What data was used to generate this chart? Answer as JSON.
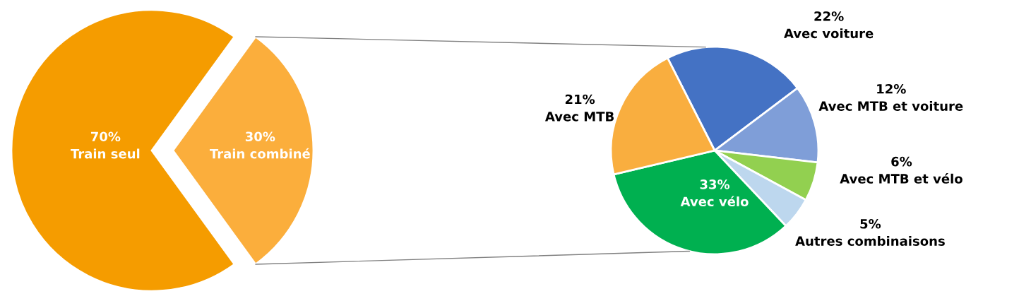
{
  "chart_data": [
    {
      "type": "pie",
      "categories": [
        "Train seul",
        "Train combiné"
      ],
      "values": [
        70,
        30
      ],
      "colors": [
        "#f59c00",
        "#fbae3c"
      ],
      "value_labels": [
        "70%",
        "30%"
      ]
    },
    {
      "type": "pie",
      "categories": [
        "Avec voiture",
        "Avec MTB et voiture",
        "Avec MTB et vélo",
        "Autres combinaisons",
        "Avec vélo",
        "Avec MTB"
      ],
      "values": [
        22,
        12,
        6,
        5,
        33,
        21
      ],
      "colors": [
        "#4472c4",
        "#7f9ed8",
        "#92d050",
        "#bdd7ee",
        "#00b050",
        "#f9ae3f"
      ],
      "value_labels": [
        "22%",
        "12%",
        "6%",
        "5%",
        "33%",
        "21%"
      ]
    }
  ]
}
